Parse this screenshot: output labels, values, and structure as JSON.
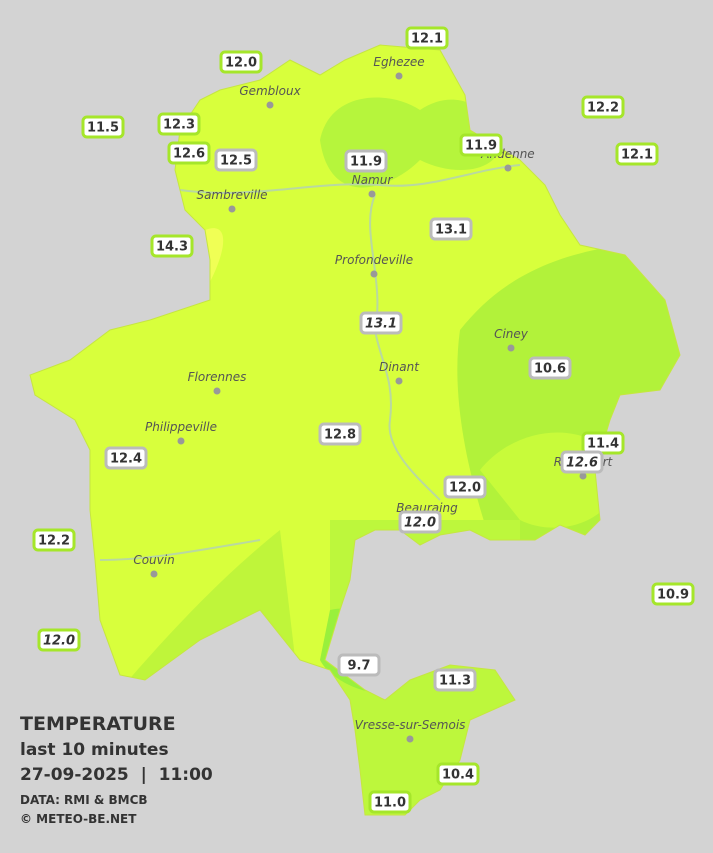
{
  "cities": [
    {
      "name": "Eghezee"
    },
    {
      "name": "Gembloux"
    },
    {
      "name": "Andenne"
    },
    {
      "name": "Namur"
    },
    {
      "name": "Sambreville"
    },
    {
      "name": "Profondeville"
    },
    {
      "name": "Ciney"
    },
    {
      "name": "Dinant"
    },
    {
      "name": "Florennes"
    },
    {
      "name": "Philippeville"
    },
    {
      "name": "Rochefort"
    },
    {
      "name": "Beauraing"
    },
    {
      "name": "Couvin"
    },
    {
      "name": "Vresse-sur-Semois"
    }
  ],
  "stations": [
    {
      "label": "12.1"
    },
    {
      "label": "12.0"
    },
    {
      "label": "11.5"
    },
    {
      "label": "12.3"
    },
    {
      "label": "12.6"
    },
    {
      "label": "12.5"
    },
    {
      "label": "11.9"
    },
    {
      "label": "11.9"
    },
    {
      "label": "12.2"
    },
    {
      "label": "12.1"
    },
    {
      "label": "14.3"
    },
    {
      "label": "13.1"
    },
    {
      "label": "13.1"
    },
    {
      "label": "10.6"
    },
    {
      "label": "12.8"
    },
    {
      "label": "11.4"
    },
    {
      "label": "12.6"
    },
    {
      "label": "12.4"
    },
    {
      "label": "12.0"
    },
    {
      "label": "12.0"
    },
    {
      "label": "12.2"
    },
    {
      "label": "10.9"
    },
    {
      "label": "12.0"
    },
    {
      "label": "9.7"
    },
    {
      "label": "11.3"
    },
    {
      "label": "10.4"
    },
    {
      "label": "11.0"
    }
  ],
  "legend": {
    "title": "TEMPERATURE",
    "subtitle": "last 10 minutes",
    "datetime": "27-09-2025  |  11:00",
    "source": "DATA: RMI & BMCB",
    "copyright": "© METEO-BE.NET"
  }
}
